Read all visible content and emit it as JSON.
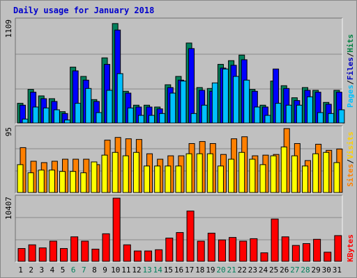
{
  "title": "Daily usage for January 2018",
  "colors": {
    "hits": "#00805c",
    "files": "#0000ff",
    "pages": "#00c0ff",
    "visits": "#ff8000",
    "sites": "#ffff00",
    "kbytes": "#ff0000",
    "weekend_day": "#00805c",
    "weekday": "#000000",
    "legend_hits": "#008040",
    "legend_files": "#0000c0",
    "legend_pages": "#00c0ff",
    "legend_visits": "#ffd000",
    "legend_sites": "#ff8000",
    "legend_kbytes": "#ff0000"
  },
  "chart_data": [
    {
      "type": "bar",
      "title": "Daily usage for January 2018",
      "ylabel_max": "1109",
      "ylim": [
        0,
        1109
      ],
      "categories": [
        "1",
        "2",
        "3",
        "4",
        "5",
        "6",
        "7",
        "8",
        "9",
        "10",
        "11",
        "12",
        "13",
        "14",
        "15",
        "16",
        "17",
        "18",
        "19",
        "20",
        "21",
        "22",
        "23",
        "24",
        "25",
        "26",
        "27",
        "28",
        "29",
        "30",
        "31"
      ],
      "weekend_days": [
        "6",
        "7",
        "13",
        "14",
        "20",
        "21",
        "27",
        "28"
      ],
      "legend": [
        "Hits",
        "/",
        "Files",
        "/",
        "Pages"
      ],
      "series": [
        {
          "name": "Hits",
          "values": [
            220,
            370,
            300,
            270,
            130,
            610,
            510,
            260,
            710,
            1080,
            350,
            200,
            200,
            180,
            420,
            510,
            870,
            390,
            380,
            640,
            680,
            740,
            370,
            200,
            460,
            410,
            280,
            390,
            360,
            230,
            360
          ]
        },
        {
          "name": "Files",
          "values": [
            200,
            340,
            270,
            240,
            110,
            570,
            470,
            240,
            640,
            1010,
            330,
            180,
            180,
            160,
            390,
            470,
            810,
            360,
            350,
            600,
            630,
            690,
            350,
            180,
            590,
            380,
            250,
            360,
            340,
            210,
            340
          ]
        },
        {
          "name": "Pages",
          "values": [
            50,
            180,
            170,
            150,
            40,
            220,
            380,
            120,
            360,
            540,
            170,
            90,
            90,
            110,
            330,
            460,
            110,
            200,
            440,
            590,
            510,
            470,
            180,
            90,
            220,
            200,
            200,
            290,
            120,
            110,
            150
          ]
        }
      ]
    },
    {
      "type": "bar",
      "ylabel_max": "95",
      "ylim": [
        0,
        95
      ],
      "categories": [
        "1",
        "2",
        "3",
        "4",
        "5",
        "6",
        "7",
        "8",
        "9",
        "10",
        "11",
        "12",
        "13",
        "14",
        "15",
        "16",
        "17",
        "18",
        "19",
        "20",
        "21",
        "22",
        "23",
        "24",
        "25",
        "26",
        "27",
        "28",
        "29",
        "30",
        "31"
      ],
      "legend": [
        "Sites",
        "/",
        "Visits"
      ],
      "series": [
        {
          "name": "Visits",
          "values": [
            67,
            47,
            45,
            47,
            50,
            50,
            50,
            42,
            78,
            82,
            80,
            79,
            58,
            50,
            55,
            55,
            73,
            76,
            73,
            57,
            80,
            83,
            55,
            56,
            57,
            95,
            73,
            48,
            72,
            63,
            65
          ]
        },
        {
          "name": "Sites",
          "values": [
            42,
            30,
            34,
            34,
            32,
            32,
            30,
            46,
            56,
            60,
            55,
            60,
            40,
            40,
            40,
            40,
            58,
            58,
            58,
            40,
            50,
            60,
            50,
            42,
            55,
            68,
            55,
            40,
            58,
            60,
            45
          ]
        }
      ]
    },
    {
      "type": "bar",
      "ylabel_max": "10407",
      "ylim": [
        0,
        10407
      ],
      "categories": [
        "1",
        "2",
        "3",
        "4",
        "5",
        "6",
        "7",
        "8",
        "9",
        "10",
        "11",
        "12",
        "13",
        "14",
        "15",
        "16",
        "17",
        "18",
        "19",
        "20",
        "21",
        "22",
        "23",
        "24",
        "25",
        "26",
        "27",
        "28",
        "29",
        "30",
        "31"
      ],
      "legend": [
        "KBytes"
      ],
      "series": [
        {
          "name": "KBytes",
          "values": [
            2200,
            2800,
            2300,
            3400,
            2200,
            4100,
            3400,
            2100,
            4600,
            10400,
            2800,
            1800,
            1800,
            2000,
            3900,
            4800,
            8300,
            3400,
            4700,
            3600,
            4000,
            3400,
            3800,
            1500,
            7000,
            4100,
            2700,
            3000,
            3700,
            1600,
            4300
          ]
        }
      ]
    }
  ]
}
